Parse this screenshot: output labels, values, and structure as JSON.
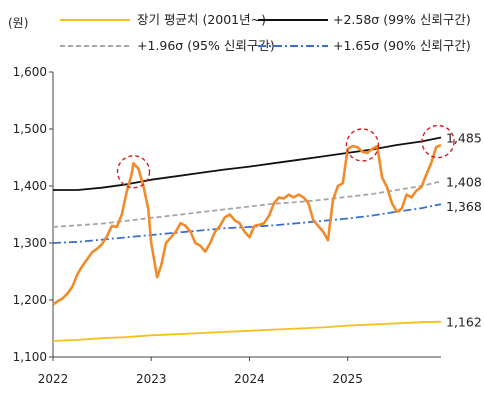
{
  "chart_data": {
    "type": "line",
    "unit_label": "(원)",
    "ylim": [
      1100,
      1600
    ],
    "yticks": [
      1100,
      1200,
      1300,
      1400,
      1500,
      1600
    ],
    "ytick_labels": [
      "1,100",
      "1,200",
      "1,300",
      "1,400",
      "1,500",
      "1,600"
    ],
    "xlim": [
      2022.0,
      2025.95
    ],
    "xticks": [
      2022,
      2023,
      2024,
      2025
    ],
    "xtick_labels": [
      "2022",
      "2023",
      "2024",
      "2025"
    ],
    "grid": false,
    "legend_position": "top",
    "series": [
      {
        "name": "장기 평균치 (2001년~)",
        "color": "#f2c21b",
        "style": "solid",
        "end_label": "1,162",
        "points": [
          [
            2022.0,
            1128
          ],
          [
            2022.25,
            1130
          ],
          [
            2022.5,
            1133
          ],
          [
            2022.75,
            1135
          ],
          [
            2023.0,
            1138
          ],
          [
            2023.25,
            1140
          ],
          [
            2023.5,
            1142
          ],
          [
            2023.75,
            1144
          ],
          [
            2024.0,
            1146
          ],
          [
            2024.25,
            1148
          ],
          [
            2024.5,
            1150
          ],
          [
            2024.75,
            1152
          ],
          [
            2025.0,
            1155
          ],
          [
            2025.25,
            1157
          ],
          [
            2025.5,
            1159
          ],
          [
            2025.75,
            1161
          ],
          [
            2025.95,
            1162
          ]
        ]
      },
      {
        "name": "+2.58σ (99% 신뢰구간)",
        "color": "#111111",
        "style": "solid",
        "end_label": "1,485",
        "points": [
          [
            2022.0,
            1393
          ],
          [
            2022.25,
            1393
          ],
          [
            2022.5,
            1397
          ],
          [
            2022.75,
            1403
          ],
          [
            2023.0,
            1411
          ],
          [
            2023.25,
            1417
          ],
          [
            2023.5,
            1423
          ],
          [
            2023.75,
            1429
          ],
          [
            2024.0,
            1434
          ],
          [
            2024.25,
            1440
          ],
          [
            2024.5,
            1446
          ],
          [
            2024.75,
            1452
          ],
          [
            2025.0,
            1458
          ],
          [
            2025.25,
            1464
          ],
          [
            2025.5,
            1472
          ],
          [
            2025.75,
            1478
          ],
          [
            2025.95,
            1485
          ]
        ]
      },
      {
        "name": "+1.96σ (95% 신뢰구간)",
        "color": "#a6a6a6",
        "style": "dashed",
        "end_label": "1,408",
        "points": [
          [
            2022.0,
            1328
          ],
          [
            2022.25,
            1331
          ],
          [
            2022.5,
            1334
          ],
          [
            2022.75,
            1339
          ],
          [
            2023.0,
            1344
          ],
          [
            2023.25,
            1349
          ],
          [
            2023.5,
            1354
          ],
          [
            2023.75,
            1359
          ],
          [
            2024.0,
            1364
          ],
          [
            2024.25,
            1369
          ],
          [
            2024.5,
            1372
          ],
          [
            2024.75,
            1376
          ],
          [
            2025.0,
            1381
          ],
          [
            2025.25,
            1386
          ],
          [
            2025.5,
            1393
          ],
          [
            2025.75,
            1400
          ],
          [
            2025.95,
            1408
          ]
        ]
      },
      {
        "name": "+1.65σ (90% 신뢰구간)",
        "color": "#3a6fc9",
        "style": "dashdot",
        "end_label": "1,368",
        "points": [
          [
            2022.0,
            1300
          ],
          [
            2022.25,
            1302
          ],
          [
            2022.5,
            1306
          ],
          [
            2022.75,
            1310
          ],
          [
            2023.0,
            1314
          ],
          [
            2023.25,
            1318
          ],
          [
            2023.5,
            1322
          ],
          [
            2023.75,
            1326
          ],
          [
            2024.0,
            1328
          ],
          [
            2024.25,
            1331
          ],
          [
            2024.5,
            1335
          ],
          [
            2024.75,
            1339
          ],
          [
            2025.0,
            1343
          ],
          [
            2025.25,
            1348
          ],
          [
            2025.5,
            1355
          ],
          [
            2025.75,
            1361
          ],
          [
            2025.95,
            1368
          ]
        ]
      },
      {
        "name": "",
        "color": "#f08a2a",
        "style": "solid",
        "points": [
          [
            2022.0,
            1192
          ],
          [
            2022.05,
            1198
          ],
          [
            2022.1,
            1203
          ],
          [
            2022.15,
            1212
          ],
          [
            2022.2,
            1224
          ],
          [
            2022.25,
            1246
          ],
          [
            2022.3,
            1260
          ],
          [
            2022.35,
            1272
          ],
          [
            2022.4,
            1284
          ],
          [
            2022.45,
            1290
          ],
          [
            2022.5,
            1298
          ],
          [
            2022.55,
            1312
          ],
          [
            2022.6,
            1330
          ],
          [
            2022.65,
            1328
          ],
          [
            2022.7,
            1350
          ],
          [
            2022.75,
            1390
          ],
          [
            2022.8,
            1420
          ],
          [
            2022.82,
            1440
          ],
          [
            2022.87,
            1430
          ],
          [
            2022.92,
            1400
          ],
          [
            2022.97,
            1360
          ],
          [
            2023.0,
            1300
          ],
          [
            2023.03,
            1270
          ],
          [
            2023.06,
            1240
          ],
          [
            2023.1,
            1260
          ],
          [
            2023.15,
            1300
          ],
          [
            2023.2,
            1310
          ],
          [
            2023.25,
            1320
          ],
          [
            2023.3,
            1335
          ],
          [
            2023.35,
            1330
          ],
          [
            2023.4,
            1320
          ],
          [
            2023.45,
            1300
          ],
          [
            2023.5,
            1295
          ],
          [
            2023.55,
            1285
          ],
          [
            2023.6,
            1300
          ],
          [
            2023.65,
            1320
          ],
          [
            2023.7,
            1330
          ],
          [
            2023.75,
            1345
          ],
          [
            2023.8,
            1350
          ],
          [
            2023.85,
            1340
          ],
          [
            2023.9,
            1335
          ],
          [
            2023.95,
            1320
          ],
          [
            2024.0,
            1310
          ],
          [
            2024.05,
            1330
          ],
          [
            2024.1,
            1332
          ],
          [
            2024.15,
            1335
          ],
          [
            2024.2,
            1348
          ],
          [
            2024.25,
            1370
          ],
          [
            2024.3,
            1380
          ],
          [
            2024.35,
            1378
          ],
          [
            2024.4,
            1385
          ],
          [
            2024.45,
            1380
          ],
          [
            2024.5,
            1385
          ],
          [
            2024.55,
            1380
          ],
          [
            2024.6,
            1370
          ],
          [
            2024.65,
            1340
          ],
          [
            2024.7,
            1330
          ],
          [
            2024.75,
            1320
          ],
          [
            2024.8,
            1305
          ],
          [
            2024.85,
            1375
          ],
          [
            2024.9,
            1400
          ],
          [
            2024.95,
            1405
          ],
          [
            2025.0,
            1465
          ],
          [
            2025.05,
            1470
          ],
          [
            2025.1,
            1468
          ],
          [
            2025.15,
            1460
          ],
          [
            2025.2,
            1458
          ],
          [
            2025.25,
            1465
          ],
          [
            2025.3,
            1470
          ],
          [
            2025.35,
            1415
          ],
          [
            2025.4,
            1398
          ],
          [
            2025.45,
            1370
          ],
          [
            2025.5,
            1355
          ],
          [
            2025.55,
            1360
          ],
          [
            2025.6,
            1385
          ],
          [
            2025.65,
            1380
          ],
          [
            2025.7,
            1392
          ],
          [
            2025.75,
            1398
          ],
          [
            2025.8,
            1420
          ],
          [
            2025.85,
            1440
          ],
          [
            2025.9,
            1468
          ],
          [
            2025.95,
            1472
          ]
        ]
      }
    ],
    "highlights": [
      {
        "x": 2022.82,
        "y": 1425
      },
      {
        "x": 2025.15,
        "y": 1472
      },
      {
        "x": 2025.92,
        "y": 1478
      }
    ]
  }
}
